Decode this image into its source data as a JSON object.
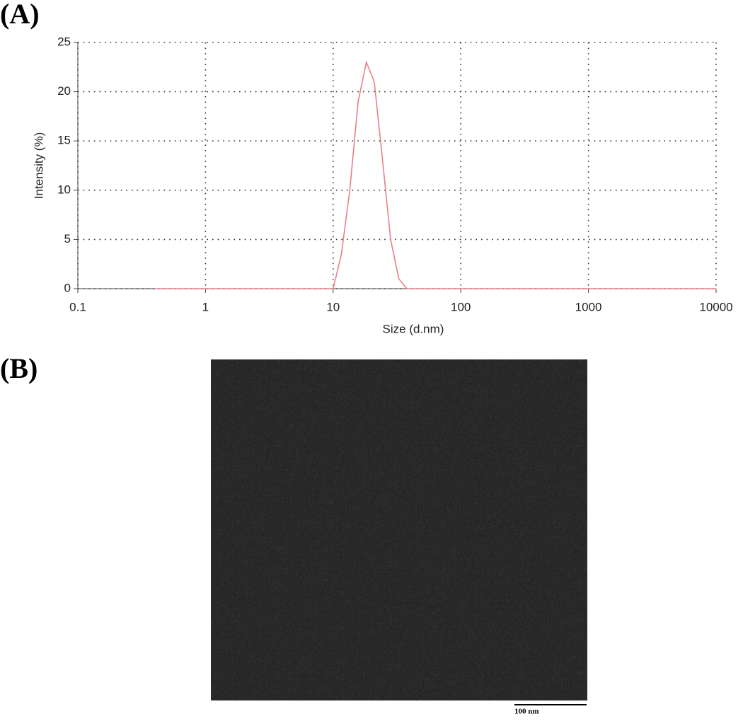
{
  "panel_a_label": "(A)",
  "panel_b_label": "(B)",
  "scale_bar_label": "100 nm",
  "chart_data": {
    "type": "line",
    "x_label": "Size (d.nm)",
    "y_label": "Intensity (%)",
    "x": [
      0.4,
      10,
      11.6,
      13.5,
      15.7,
      18.2,
      21.0,
      24.4,
      28.2,
      32.7,
      37.8,
      10000
    ],
    "series": [
      {
        "color": "#e8808a",
        "values": [
          0,
          0,
          3.5,
          10,
          19,
          23,
          21,
          13,
          5,
          1,
          0,
          0
        ]
      }
    ],
    "xlim": [
      0.1,
      10000
    ],
    "xticks": [
      0.1,
      1,
      10,
      100,
      1000,
      10000
    ],
    "log_x": true,
    "ylim": [
      0,
      25
    ],
    "yticks": [
      0,
      5,
      10,
      15,
      20,
      25
    ],
    "grid": true
  }
}
